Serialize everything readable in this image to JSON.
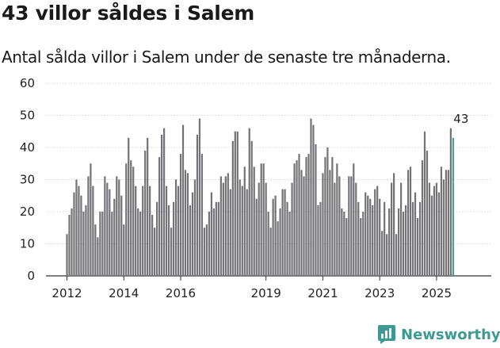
{
  "header": {
    "title": "43 villor såldes i Salem",
    "subtitle": "Antal sålda villor i Salem under de senaste tre månaderna."
  },
  "brand": {
    "name": "Newsworthy",
    "icon": "bar-chart-icon",
    "color": "#3d9a93"
  },
  "colors": {
    "bar": "#737276",
    "highlight": "#4a9f9a",
    "grid": "#d4d4d4"
  },
  "chart_data": {
    "type": "bar",
    "title": "43 villor såldes i Salem",
    "xlabel": "",
    "ylabel": "",
    "ylim": [
      0,
      60
    ],
    "yticks": [
      0,
      10,
      20,
      30,
      40,
      50,
      60
    ],
    "grid": true,
    "x_start": "2012-01",
    "xtick_labels": [
      {
        "label": "2012",
        "index": 0
      },
      {
        "label": "2014",
        "index": 24
      },
      {
        "label": "2016",
        "index": 48
      },
      {
        "label": "2019",
        "index": 84
      },
      {
        "label": "2021",
        "index": 108
      },
      {
        "label": "2023",
        "index": 132
      },
      {
        "label": "2025",
        "index": 156
      }
    ],
    "values": [
      13,
      19,
      21,
      26,
      30,
      28,
      25,
      20,
      22,
      31,
      35,
      28,
      16,
      12,
      20,
      20,
      31,
      29,
      27,
      20,
      24,
      31,
      30,
      25,
      16,
      35,
      43,
      36,
      34,
      28,
      21,
      20,
      28,
      39,
      43,
      28,
      19,
      15,
      23,
      37,
      44,
      46,
      28,
      22,
      15,
      23,
      30,
      28,
      38,
      47,
      33,
      32,
      22,
      26,
      30,
      44,
      49,
      38,
      15,
      16,
      20,
      26,
      21,
      23,
      23,
      31,
      29,
      31,
      32,
      27,
      42,
      45,
      45,
      30,
      28,
      34,
      27,
      46,
      42,
      34,
      24,
      29,
      35,
      35,
      29,
      20,
      15,
      24,
      25,
      17,
      21,
      27,
      27,
      23,
      20,
      29,
      35,
      36,
      38,
      33,
      31,
      37,
      38,
      49,
      47,
      41,
      22,
      23,
      32,
      37,
      40,
      33,
      37,
      29,
      35,
      31,
      21,
      20,
      18,
      31,
      31,
      35,
      29,
      23,
      18,
      20,
      26,
      25,
      24,
      22,
      27,
      28,
      24,
      14,
      23,
      13,
      21,
      29,
      32,
      13,
      21,
      29,
      20,
      22,
      33,
      34,
      23,
      26,
      18,
      23,
      36,
      45,
      39,
      29,
      25,
      28,
      29,
      26,
      34,
      30,
      33,
      33,
      46,
      43
    ],
    "highlight_last": 1,
    "annotation": {
      "label": "43",
      "index": 167,
      "value": 43
    }
  }
}
